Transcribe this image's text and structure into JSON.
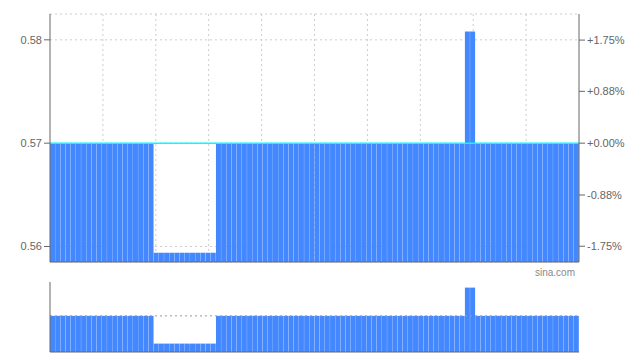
{
  "chart_data": [
    {
      "type": "bar",
      "categories": [
        null,
        null,
        null,
        null,
        null,
        null,
        null,
        null,
        null,
        null,
        null,
        null,
        null,
        null,
        null,
        null,
        null,
        null,
        null,
        null,
        null,
        null,
        null,
        null,
        null,
        null,
        null,
        null,
        null,
        null,
        null,
        null,
        null,
        null,
        null,
        null,
        null,
        null,
        null,
        null,
        null,
        null,
        null,
        null,
        null,
        null,
        null,
        null,
        null,
        null,
        null,
        null,
        null,
        null,
        null,
        null,
        null,
        null,
        null,
        null,
        null,
        null,
        null,
        null,
        null,
        null,
        null,
        null,
        null,
        null,
        null,
        null,
        null,
        null,
        null,
        null,
        null,
        null,
        null,
        null,
        null,
        null,
        null,
        null,
        null,
        null,
        null,
        null,
        null,
        null,
        null,
        null,
        null,
        null,
        null,
        null,
        null,
        null,
        null,
        null,
        null,
        null
      ],
      "values": [
        0.57,
        0.57,
        0.57,
        0.57,
        0.57,
        0.57,
        0.57,
        0.57,
        0.57,
        0.57,
        0.57,
        0.57,
        0.57,
        0.57,
        0.57,
        0.57,
        0.57,
        0.57,
        0.57,
        0.57,
        0.5594,
        0.5594,
        0.5594,
        0.5594,
        0.5594,
        0.5594,
        0.5594,
        0.5594,
        0.5594,
        0.5594,
        0.5594,
        0.5594,
        0.57,
        0.57,
        0.57,
        0.57,
        0.57,
        0.57,
        0.57,
        0.57,
        0.57,
        0.57,
        0.57,
        0.57,
        0.57,
        0.57,
        0.57,
        0.57,
        0.57,
        0.57,
        0.57,
        0.57,
        0.57,
        0.57,
        0.57,
        0.57,
        0.57,
        0.57,
        0.57,
        0.57,
        0.57,
        0.57,
        0.57,
        0.57,
        0.57,
        0.57,
        0.57,
        0.57,
        0.57,
        0.57,
        0.57,
        0.57,
        0.57,
        0.57,
        0.57,
        0.57,
        0.57,
        0.57,
        0.57,
        0.57,
        0.5808,
        0.5808,
        0.57,
        0.57,
        0.57,
        0.57,
        0.57,
        0.57,
        0.57,
        0.57,
        0.57,
        0.57,
        0.57,
        0.57,
        0.57,
        0.57,
        0.57,
        0.57,
        0.57,
        0.57,
        0.57,
        0.57
      ],
      "color": "#4488FF",
      "ylim": [
        0.5585,
        0.5825
      ],
      "yticks": [
        0.56,
        0.57,
        0.58
      ],
      "y2lim": [
        -2.01754385964912,
        2.19298245614035
      ],
      "y2ticks": [
        {
          "value": -1.75,
          "label": "-1.75%"
        },
        {
          "value": -0.88,
          "label": "-0.88%"
        },
        {
          "value": 0,
          "label": "+0.00%"
        },
        {
          "value": 0.88,
          "label": "+0.88%"
        },
        {
          "value": 1.75,
          "label": "+1.75%"
        }
      ],
      "reference_line": {
        "value": 0.57,
        "color": "#00FFFF"
      },
      "annotation": "sina.com",
      "grid": true,
      "tick_labels": "y"
    },
    {
      "type": "bar",
      "categories": [
        null,
        null,
        null,
        null,
        null,
        null,
        null,
        null,
        null,
        null,
        null,
        null,
        null,
        null,
        null,
        null,
        null,
        null,
        null,
        null,
        null,
        null,
        null,
        null,
        null,
        null,
        null,
        null,
        null,
        null,
        null,
        null,
        null,
        null,
        null,
        null,
        null,
        null,
        null,
        null,
        null,
        null,
        null,
        null,
        null,
        null,
        null,
        null,
        null,
        null,
        null,
        null,
        null,
        null,
        null,
        null,
        null,
        null,
        null,
        null,
        null,
        null,
        null,
        null,
        null,
        null,
        null,
        null,
        null,
        null,
        null,
        null,
        null,
        null,
        null,
        null,
        null,
        null,
        null,
        null,
        null,
        null,
        null,
        null,
        null,
        null,
        null,
        null,
        null,
        null,
        null,
        null,
        null,
        null,
        null,
        null,
        null,
        null,
        null,
        null,
        null,
        null
      ],
      "values": [
        0.57,
        0.57,
        0.57,
        0.57,
        0.57,
        0.57,
        0.57,
        0.57,
        0.57,
        0.57,
        0.57,
        0.57,
        0.57,
        0.57,
        0.57,
        0.57,
        0.57,
        0.57,
        0.57,
        0.57,
        0.5594,
        0.5594,
        0.5594,
        0.5594,
        0.5594,
        0.5594,
        0.5594,
        0.5594,
        0.5594,
        0.5594,
        0.5594,
        0.5594,
        0.57,
        0.57,
        0.57,
        0.57,
        0.57,
        0.57,
        0.57,
        0.57,
        0.57,
        0.57,
        0.57,
        0.57,
        0.57,
        0.57,
        0.57,
        0.57,
        0.57,
        0.57,
        0.57,
        0.57,
        0.57,
        0.57,
        0.57,
        0.57,
        0.57,
        0.57,
        0.57,
        0.57,
        0.57,
        0.57,
        0.57,
        0.57,
        0.57,
        0.57,
        0.57,
        0.57,
        0.57,
        0.57,
        0.57,
        0.57,
        0.57,
        0.57,
        0.57,
        0.57,
        0.57,
        0.57,
        0.57,
        0.57,
        0.5808,
        0.5808,
        0.57,
        0.57,
        0.57,
        0.57,
        0.57,
        0.57,
        0.57,
        0.57,
        0.57,
        0.57,
        0.57,
        0.57,
        0.57,
        0.57,
        0.57,
        0.57,
        0.57,
        0.57,
        0.57,
        0.57
      ],
      "color": "#4488FF",
      "ylim": [
        0.55619,
        0.58294
      ],
      "reference_line": {
        "value": 0.57
      },
      "tick_labels": false
    }
  ]
}
